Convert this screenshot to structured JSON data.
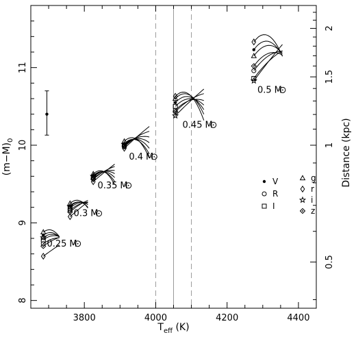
{
  "chart_data": {
    "type": "scatter",
    "x_axis": {
      "label_main": "T",
      "label_sub": "eff",
      "label_unit": " (K)",
      "range": [
        3650,
        4450
      ],
      "ticks": [
        3800,
        4000,
        4200,
        4400
      ],
      "tick_labels": [
        "3800",
        "4000",
        "4200",
        "4400"
      ]
    },
    "y_axis_left": {
      "label_main": "(m−M)",
      "label_sub": "0",
      "range": [
        7.9,
        11.8
      ],
      "ticks": [
        8,
        9,
        10,
        11
      ],
      "tick_labels": [
        "8",
        "9",
        "10",
        "11"
      ]
    },
    "y_axis_right": {
      "label": "Distance (kpc)",
      "ticks": [
        0.5,
        1,
        1.5,
        2
      ],
      "tick_labels": [
        "0.5",
        "1",
        "1.5",
        "2"
      ]
    },
    "vertical_lines": [
      {
        "x": 4000,
        "style": "dashed"
      },
      {
        "x": 4050,
        "style": "solid"
      },
      {
        "x": 4100,
        "style": "dashed"
      }
    ],
    "error_bar": {
      "x": 3695,
      "y": 10.4,
      "low": 10.13,
      "high": 10.7
    },
    "mass_groups": [
      {
        "label_value": "0.25",
        "label_unit": "M",
        "label_pos": [
          3695,
          8.74
        ],
        "teff": 3685,
        "points": [
          {
            "band": "V",
            "y": 8.84
          },
          {
            "band": "R",
            "y": 8.73
          },
          {
            "band": "I",
            "y": 8.78
          },
          {
            "band": "g",
            "y": 8.88
          },
          {
            "band": "r",
            "y": 8.57
          },
          {
            "band": "i",
            "y": 8.81
          },
          {
            "band": "z",
            "y": 8.7
          }
        ]
      },
      {
        "label_value": "0.3",
        "label_unit": "M",
        "label_pos": [
          3770,
          9.13
        ],
        "teff": 3760,
        "points": [
          {
            "band": "V",
            "y": 9.22
          },
          {
            "band": "R",
            "y": 9.16
          },
          {
            "band": "I",
            "y": 9.19
          },
          {
            "band": "g",
            "y": 9.25
          },
          {
            "band": "r",
            "y": 9.08
          },
          {
            "band": "i",
            "y": 9.21
          },
          {
            "band": "z",
            "y": 9.14
          }
        ]
      },
      {
        "label_value": "0.35",
        "label_unit": "M",
        "label_pos": [
          3837,
          9.49
        ],
        "teff": 3825,
        "points": [
          {
            "band": "V",
            "y": 9.61
          },
          {
            "band": "R",
            "y": 9.57
          },
          {
            "band": "I",
            "y": 9.59
          },
          {
            "band": "g",
            "y": 9.63
          },
          {
            "band": "r",
            "y": 9.53
          },
          {
            "band": "i",
            "y": 9.6
          },
          {
            "band": "z",
            "y": 9.56
          }
        ]
      },
      {
        "label_value": "0.4",
        "label_unit": "M",
        "label_pos": [
          3925,
          9.86
        ],
        "teff": 3912,
        "points": [
          {
            "band": "V",
            "y": 10.02
          },
          {
            "band": "R",
            "y": 9.98
          },
          {
            "band": "I",
            "y": 10.0
          },
          {
            "band": "g",
            "y": 10.05
          },
          {
            "band": "r",
            "y": 9.96
          },
          {
            "band": "i",
            "y": 10.01
          },
          {
            "band": "z",
            "y": 9.99
          }
        ]
      },
      {
        "label_value": "0.45",
        "label_unit": "M",
        "label_pos": [
          4075,
          10.27
        ],
        "teff": 4055,
        "points": [
          {
            "band": "V",
            "y": 10.55
          },
          {
            "band": "R",
            "y": 10.45
          },
          {
            "band": "I",
            "y": 10.5
          },
          {
            "band": "g",
            "y": 10.6
          },
          {
            "band": "r",
            "y": 10.63
          },
          {
            "band": "i",
            "y": 10.38
          },
          {
            "band": "z",
            "y": 10.43
          }
        ]
      },
      {
        "label_value": "0.5",
        "label_unit": "M",
        "label_pos": [
          4285,
          10.72
        ],
        "teff": 4275,
        "points": [
          {
            "band": "V",
            "y": 11.23
          },
          {
            "band": "R",
            "y": 10.96
          },
          {
            "band": "I",
            "y": 10.86
          },
          {
            "band": "g",
            "y": 11.15
          },
          {
            "band": "r",
            "y": 11.33
          },
          {
            "band": "i",
            "y": 10.83
          },
          {
            "band": "z",
            "y": 11.02
          }
        ]
      }
    ],
    "legend": {
      "placement": "right-middle",
      "entries": [
        {
          "band": "V",
          "marker": "filled-circle"
        },
        {
          "band": "R",
          "marker": "open-circle"
        },
        {
          "band": "I",
          "marker": "open-square"
        },
        {
          "band": "g",
          "marker": "open-triangle"
        },
        {
          "band": "r",
          "marker": "open-diamond"
        },
        {
          "band": "i",
          "marker": "open-star"
        },
        {
          "band": "z",
          "marker": "diamond-dot"
        }
      ]
    }
  }
}
